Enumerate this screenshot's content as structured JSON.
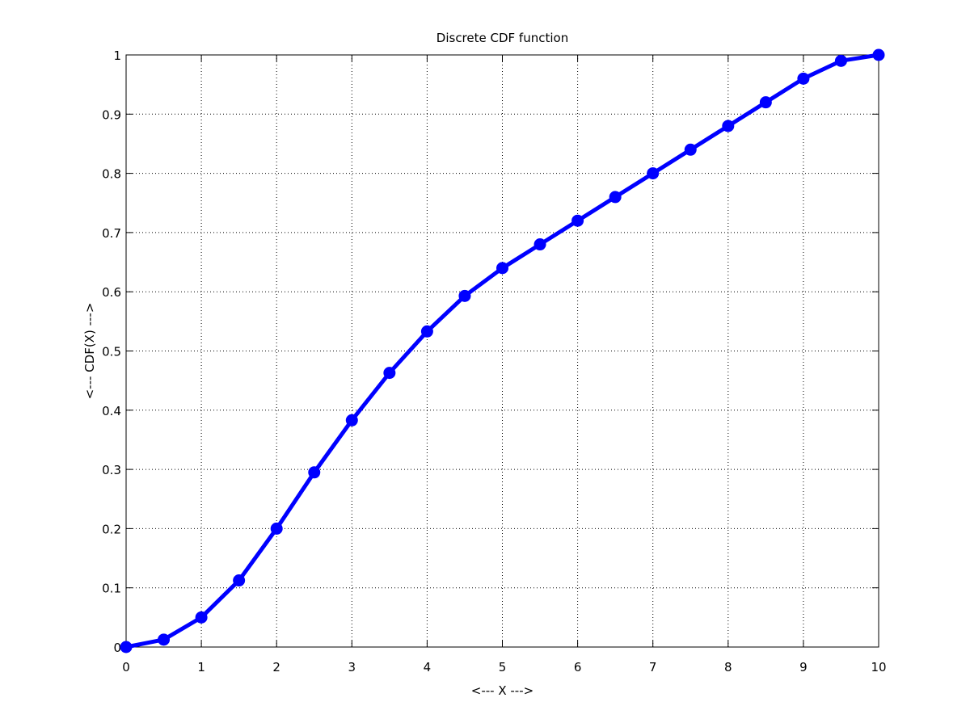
{
  "chart_data": {
    "type": "line",
    "title": "Discrete CDF function",
    "xlabel": "<--- X --->",
    "ylabel": "<--- CDF(X) --->",
    "xlim": [
      0,
      10
    ],
    "ylim": [
      0,
      1
    ],
    "xticks": [
      0,
      1,
      2,
      3,
      4,
      5,
      6,
      7,
      8,
      9,
      10
    ],
    "xtick_labels": [
      "0",
      "1",
      "2",
      "3",
      "4",
      "5",
      "6",
      "7",
      "8",
      "9",
      "10"
    ],
    "yticks": [
      0,
      0.1,
      0.2,
      0.3,
      0.4,
      0.5,
      0.6,
      0.7,
      0.8,
      0.9,
      1
    ],
    "ytick_labels": [
      "0",
      "0.1",
      "0.2",
      "0.3",
      "0.4",
      "0.5",
      "0.6",
      "0.7",
      "0.8",
      "0.9",
      "1"
    ],
    "grid": true,
    "series": [
      {
        "color": "#0000ff",
        "marker": "circle",
        "x": [
          0,
          0.5,
          1,
          1.5,
          2,
          2.5,
          3,
          3.5,
          4,
          4.5,
          5,
          5.5,
          6,
          6.5,
          7,
          7.5,
          8,
          8.5,
          9,
          9.5,
          10
        ],
        "y": [
          0,
          0.0125,
          0.05,
          0.1125,
          0.2,
          0.295,
          0.383,
          0.463,
          0.533,
          0.593,
          0.64,
          0.68,
          0.72,
          0.76,
          0.8,
          0.84,
          0.88,
          0.92,
          0.96,
          0.99,
          1.0
        ]
      }
    ]
  }
}
